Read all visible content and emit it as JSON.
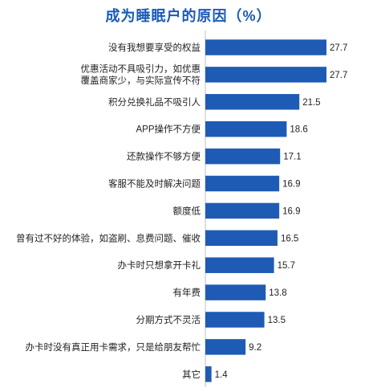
{
  "chart_data": {
    "type": "bar",
    "orientation": "horizontal",
    "title": "成为睡眠户的原因（%）",
    "categories": [
      [
        "没有我想要享受的权益"
      ],
      [
        "优惠活动不具吸引力，如优惠",
        "覆盖商家少，与实际宣传不符"
      ],
      [
        "积分兑换礼品不吸引人"
      ],
      [
        "APP操作不方便"
      ],
      [
        "还款操作不够方便"
      ],
      [
        "客服不能及时解决问题"
      ],
      [
        "额度低"
      ],
      [
        "曾有过不好的体验，如盗刷、息费问题、催收"
      ],
      [
        "办卡时只想拿开卡礼"
      ],
      [
        "有年费"
      ],
      [
        "分期方式不灵活"
      ],
      [
        "办卡时没有真正用卡需求，只是给朋友帮忙"
      ],
      [
        "其它"
      ]
    ],
    "values": [
      27.7,
      27.7,
      21.5,
      18.6,
      17.1,
      16.9,
      16.9,
      16.5,
      15.7,
      13.8,
      13.5,
      9.2,
      1.4
    ],
    "value_labels": [
      "27.7",
      "27.7",
      "21.5",
      "18.6",
      "17.1",
      "16.9",
      "16.9",
      "16.5",
      "15.7",
      "13.8",
      "13.5",
      "9.2",
      "1.4"
    ],
    "xlim": [
      0,
      27.7
    ],
    "bar_color": "#1e5bb5",
    "grid": false,
    "legend": "none"
  }
}
